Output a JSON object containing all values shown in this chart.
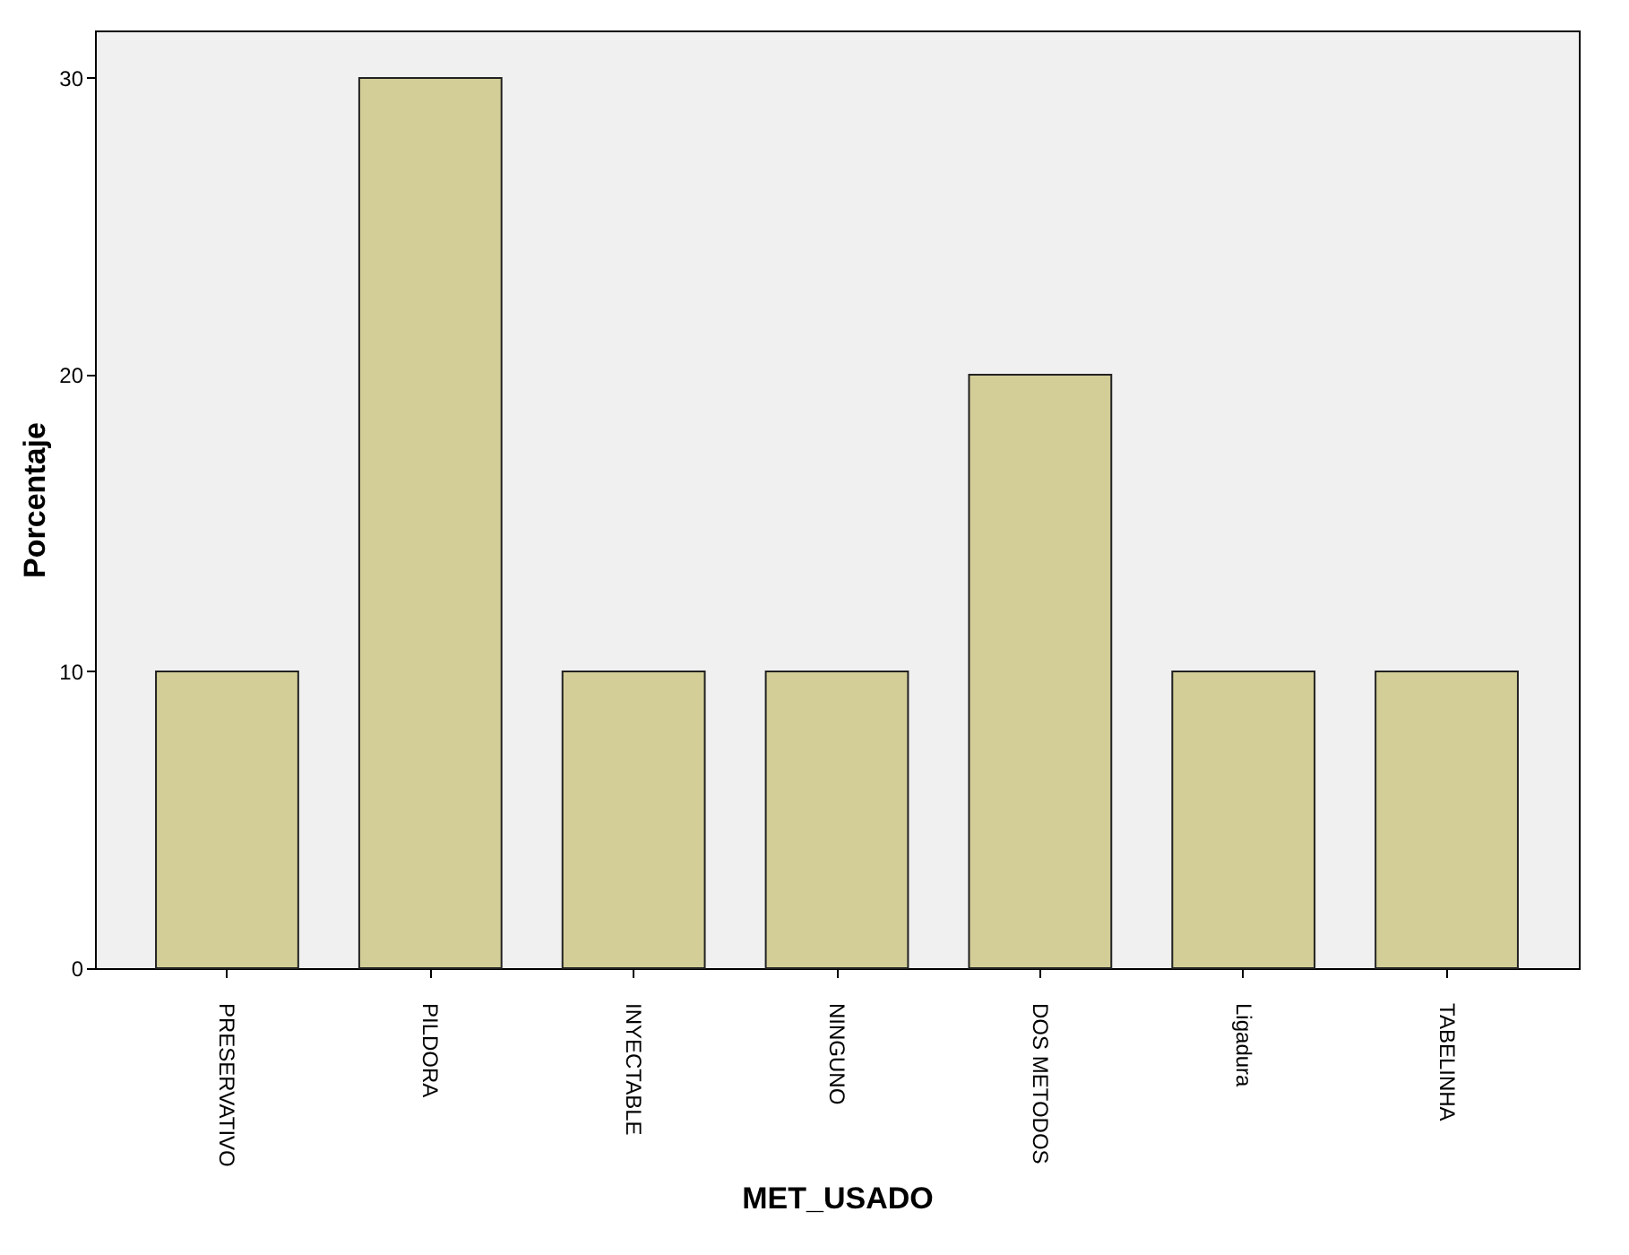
{
  "chart_data": {
    "type": "bar",
    "xlabel": "MET_USADO",
    "ylabel": "Porcentaje",
    "categories": [
      "PRESERVATIVO",
      "PILDORA",
      "INYECTABLE",
      "NINGUNO",
      "DOS METODOS",
      "Ligadura",
      "TABELINHA"
    ],
    "values": [
      10,
      30,
      10,
      10,
      20,
      10,
      10
    ],
    "color": "#d3ce97",
    "ylim": [
      0,
      31.6
    ],
    "yticks": [
      0,
      10,
      20,
      30
    ],
    "grid": false
  }
}
